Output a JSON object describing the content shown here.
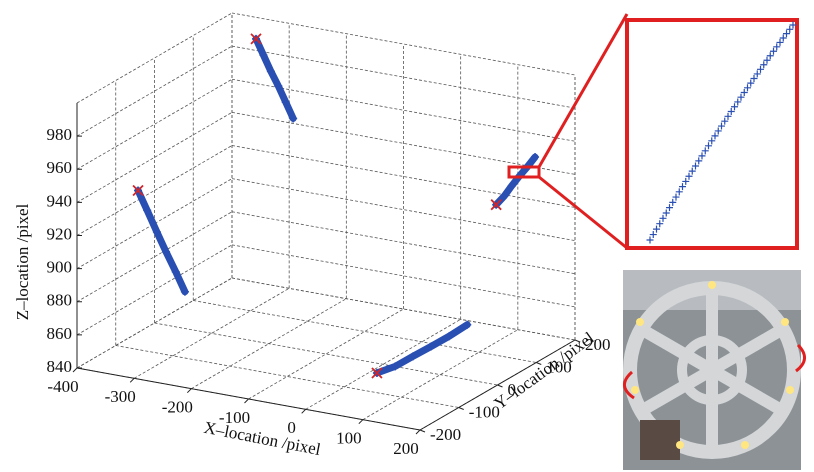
{
  "chart_data": {
    "type": "scatter3d",
    "xlabel": "X–location /pixel",
    "ylabel": "Y–location /pixel",
    "zlabel": "Z–location /pixel",
    "xlim": [
      -400,
      200
    ],
    "ylim": [
      -200,
      200
    ],
    "zlim": [
      840,
      1000
    ],
    "xticks": [
      -400,
      -300,
      -200,
      -100,
      0,
      100,
      200
    ],
    "yticks": [
      -200,
      -100,
      0,
      100,
      200
    ],
    "zticks": [
      840,
      860,
      880,
      900,
      920,
      940,
      960,
      980
    ],
    "grid": true,
    "color": "#2a4fb3",
    "start_marker_color": "#d0262a",
    "series": [
      {
        "x": [
          -358,
          -345,
          -332,
          -319,
          -306,
          -293
        ],
        "y": [
          200,
          200,
          200,
          200,
          200,
          200
        ],
        "z": [
          987,
          978,
          969,
          961,
          952,
          943
        ]
      },
      {
        "x": [
          -361,
          -345,
          -328,
          -312,
          -295,
          -279
        ],
        "y": [
          -100,
          -100,
          -100,
          -100,
          -100,
          -100
        ],
        "z": [
          936,
          925,
          913,
          902,
          891,
          880
        ]
      },
      {
        "x": [
          23,
          55,
          86,
          118,
          149,
          181
        ],
        "y": [
          -50,
          -50,
          -50,
          -50,
          -50,
          -50
        ],
        "z": [
          843,
          849,
          857,
          865,
          873,
          882
        ]
      },
      {
        "x": [
          96,
          110,
          123,
          137,
          150,
          164
        ],
        "y": [
          150,
          150,
          150,
          150,
          150,
          150
        ],
        "z": [
          922,
          928,
          935,
          942,
          948,
          955
        ]
      }
    ]
  }
}
